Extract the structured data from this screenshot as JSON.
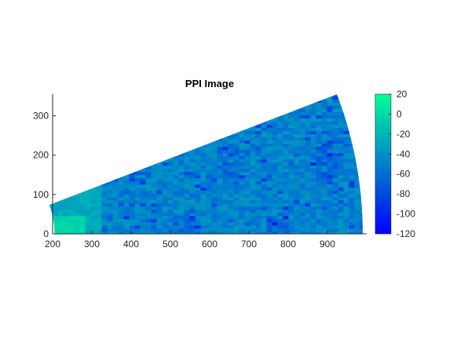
{
  "chart_data": {
    "type": "heatmap",
    "title": "PPI Image",
    "xlabel": "",
    "ylabel": "",
    "xlim": [
      200,
      1000
    ],
    "ylim": [
      0,
      355
    ],
    "x_ticks": [
      200,
      300,
      400,
      500,
      600,
      700,
      800,
      900
    ],
    "y_ticks": [
      0,
      100,
      200,
      300
    ],
    "range_min": 205,
    "range_max": 990,
    "azimuth_deg": [
      0,
      21
    ],
    "colorbar": {
      "min": -120,
      "max": 20,
      "ticks": [
        20,
        0,
        -20,
        -40,
        -60,
        -80,
        -100,
        -120
      ],
      "colormap": [
        "#0000ff",
        "#00ff99"
      ]
    },
    "grid": false,
    "legend": "none"
  }
}
